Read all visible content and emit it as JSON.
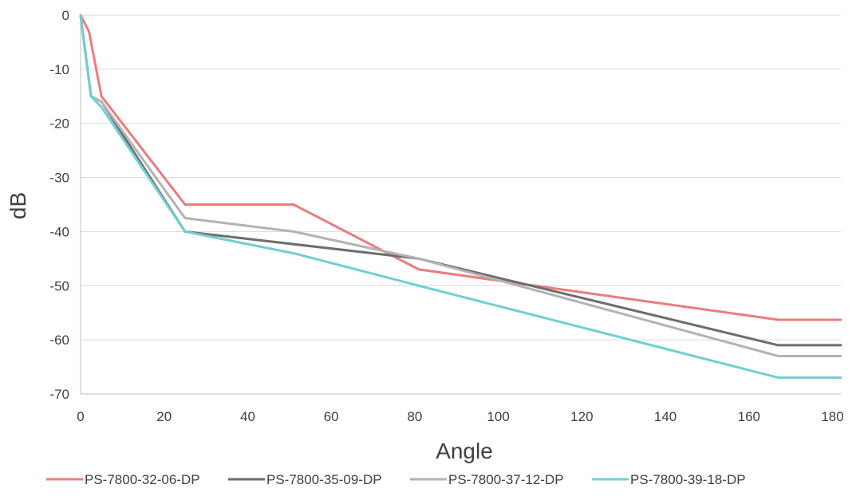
{
  "chart_data": {
    "type": "line",
    "xlabel": "Angle",
    "ylabel": "dB",
    "xlim": [
      0,
      182
    ],
    "ylim": [
      -70,
      0
    ],
    "xticks": [
      0,
      20,
      40,
      60,
      80,
      100,
      120,
      140,
      160,
      180
    ],
    "yticks": [
      0,
      -10,
      -20,
      -30,
      -40,
      -50,
      -60,
      -70
    ],
    "grid": "horizontal",
    "legend": "bottom",
    "series": [
      {
        "name": "PS-7800-32-06-DP",
        "color": "#ec7c7c",
        "points": [
          [
            0,
            0
          ],
          [
            2,
            -3
          ],
          [
            5,
            -15
          ],
          [
            25,
            -35
          ],
          [
            51,
            -35
          ],
          [
            81,
            -47
          ],
          [
            167,
            -56.3
          ],
          [
            182,
            -56.3
          ]
        ]
      },
      {
        "name": "PS-7800-35-09-DP",
        "color": "#6d6d6d",
        "points": [
          [
            0,
            0
          ],
          [
            2.5,
            -15
          ],
          [
            5,
            -16
          ],
          [
            25,
            -40
          ],
          [
            81,
            -45
          ],
          [
            167,
            -61
          ],
          [
            182,
            -61
          ]
        ]
      },
      {
        "name": "PS-7800-37-12-DP",
        "color": "#b3b3b3",
        "points": [
          [
            0,
            0
          ],
          [
            2.5,
            -15
          ],
          [
            5,
            -16
          ],
          [
            25,
            -37.5
          ],
          [
            51,
            -40
          ],
          [
            81,
            -45
          ],
          [
            167,
            -63
          ],
          [
            182,
            -63
          ]
        ]
      },
      {
        "name": "PS-7800-39-18-DP",
        "color": "#6fcfd3",
        "points": [
          [
            0,
            0
          ],
          [
            2.5,
            -15
          ],
          [
            5,
            -17
          ],
          [
            25,
            -40
          ],
          [
            51,
            -44
          ],
          [
            81,
            -50
          ],
          [
            167,
            -67
          ],
          [
            182,
            -67
          ]
        ]
      }
    ]
  }
}
